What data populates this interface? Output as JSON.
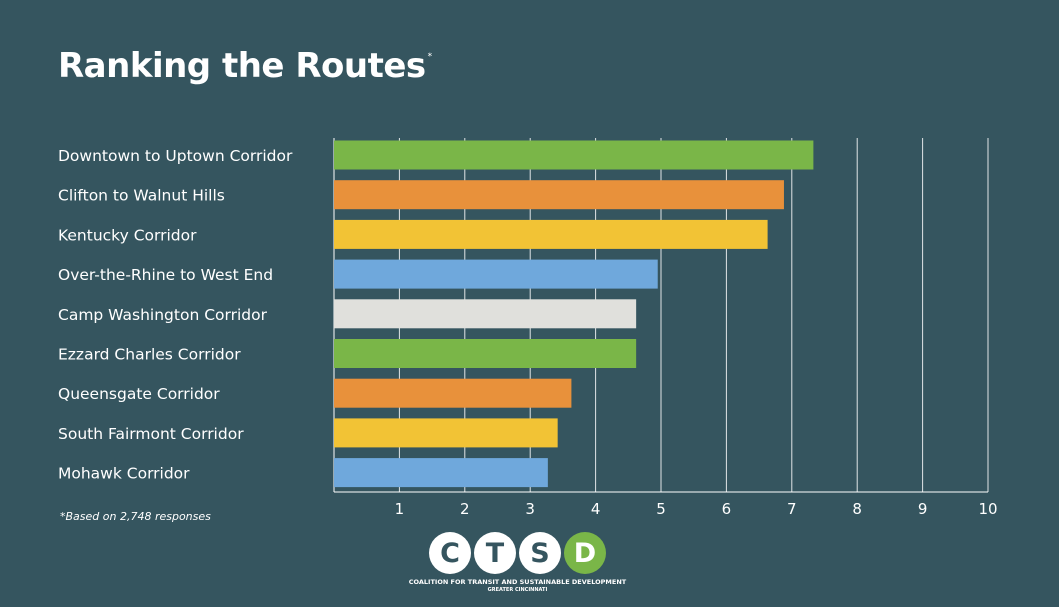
{
  "header": {
    "title": "Ranking the Routes",
    "title_mark": "*"
  },
  "footnote": "*Based on 2,748 responses",
  "logo": {
    "letters": [
      "C",
      "T",
      "S",
      "D"
    ],
    "line1": "COALITION FOR TRANSIT AND SUSTAINABLE DEVELOPMENT",
    "line2": "GREATER CINCINNATI"
  },
  "colors": {
    "background": "#35555f",
    "green": "#7ab648",
    "orange": "#e8913b",
    "yellow": "#f2c335",
    "blue": "#6fa8dc",
    "light_gray": "#e0e0dc",
    "gridline": "#ffffff"
  },
  "chart_data": {
    "type": "bar",
    "orientation": "horizontal",
    "categories": [
      "Downtown to Uptown Corridor",
      "Clifton to Walnut Hills",
      "Kentucky Corridor",
      "Over-the-Rhine to West End",
      "Camp Washington Corridor",
      "Ezzard Charles Corridor",
      "Queensgate Corridor",
      "South Fairmont Corridor",
      "Mohawk Corridor"
    ],
    "values": [
      7.33,
      6.88,
      6.63,
      4.95,
      4.62,
      4.62,
      3.63,
      3.42,
      3.27
    ],
    "bar_colors": [
      "#7ab648",
      "#e8913b",
      "#f2c335",
      "#6fa8dc",
      "#e0e0dc",
      "#7ab648",
      "#e8913b",
      "#f2c335",
      "#6fa8dc"
    ],
    "xlim": [
      0,
      10
    ],
    "x_ticks": [
      "1",
      "2",
      "3",
      "4",
      "5",
      "6",
      "7",
      "8",
      "9",
      "10"
    ],
    "grid": true,
    "legend": "none"
  }
}
